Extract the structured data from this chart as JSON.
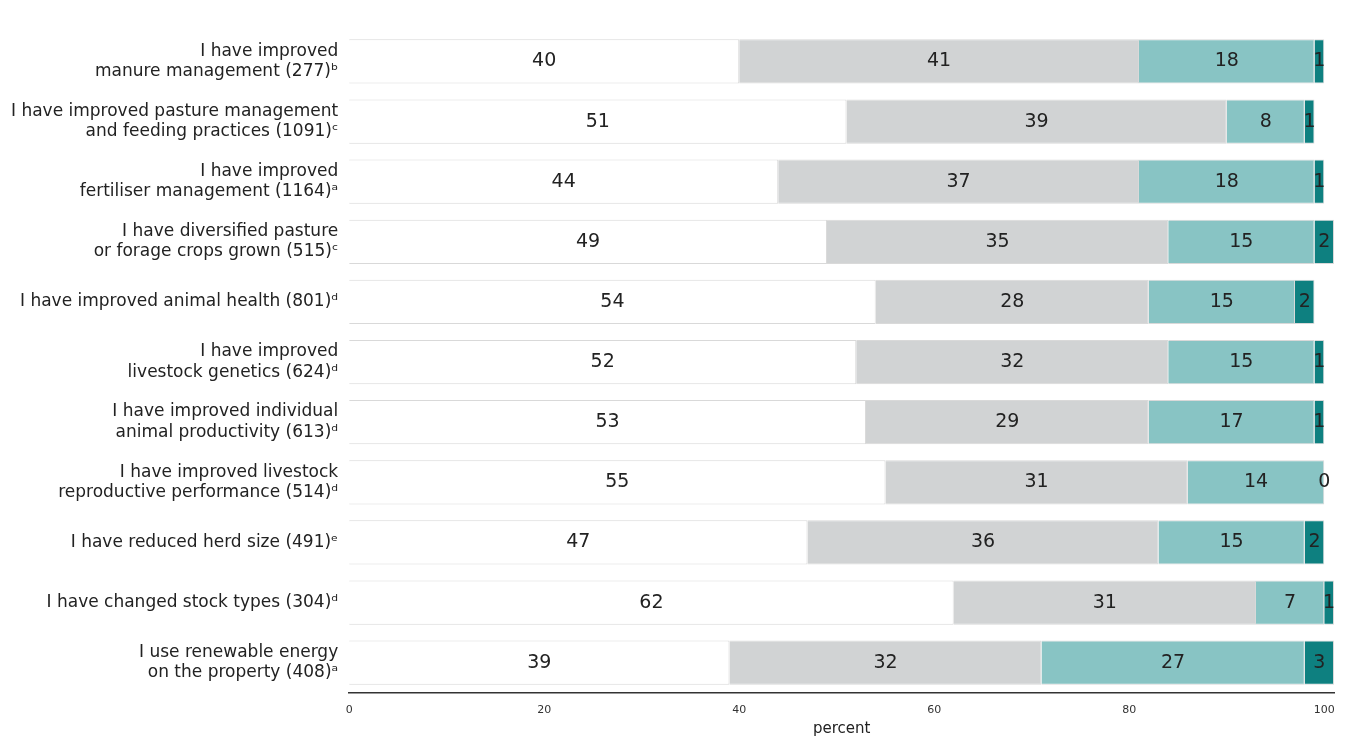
{
  "chart_data": {
    "type": "bar",
    "orientation": "horizontal",
    "stacked": true,
    "xlabel": "percent",
    "categories": [
      "I have improved\nmanure management (277)ᵇ",
      "I have improved pasture management\nand feeding practices (1091)ᶜ",
      "I have improved\nfertiliser management (1164)ᵃ",
      "I have diversified pasture\nor forage crops grown (515)ᶜ",
      "I have improved animal health (801)ᵈ",
      "I have improved\nlivestock genetics (624)ᵈ",
      "I have improved individual\nanimal productivity (613)ᵈ",
      "I have improved livestock\nreproductive performance (514)ᵈ",
      "I have reduced herd size (491)ᵉ",
      "I have changed stock types (304)ᵈ",
      "I use renewable energy\non the property (408)ᵃ"
    ],
    "series": [
      {
        "color": "#ffffff",
        "values": [
          40,
          51,
          44,
          49,
          54,
          52,
          53,
          55,
          47,
          62,
          39
        ]
      },
      {
        "color": "#d1d3d4",
        "values": [
          41,
          39,
          37,
          35,
          28,
          32,
          29,
          31,
          36,
          31,
          32
        ]
      },
      {
        "color": "#88c4c4",
        "values": [
          18,
          8,
          18,
          15,
          15,
          15,
          17,
          14,
          15,
          7,
          27
        ]
      },
      {
        "color": "#0e8080",
        "values": [
          1,
          1,
          1,
          2,
          2,
          1,
          1,
          0,
          2,
          1,
          3
        ]
      }
    ],
    "xlim": [
      0,
      101
    ],
    "xticks": [
      0,
      20,
      40,
      60,
      80,
      100
    ],
    "grid": false,
    "legend": false,
    "data_labels": true
  }
}
